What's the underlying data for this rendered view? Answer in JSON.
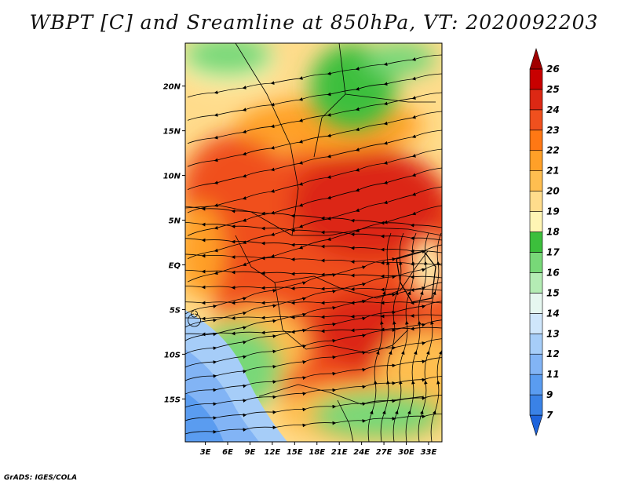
{
  "title": "WBPT [C] and Sreamline at 850hPa, VT: 2020092203",
  "credit": "GrADS: IGES/COLA",
  "map": {
    "lat_labels": [
      "20N",
      "15N",
      "10N",
      "5N",
      "EQ",
      "5S",
      "10S",
      "15S"
    ],
    "lat_values": [
      20,
      15,
      10,
      5,
      0,
      -5,
      -10,
      -15
    ],
    "lon_labels": [
      "3E",
      "6E",
      "9E",
      "12E",
      "15E",
      "18E",
      "21E",
      "24E",
      "27E",
      "30E",
      "33E"
    ],
    "lon_values": [
      3,
      6,
      9,
      12,
      15,
      18,
      21,
      24,
      27,
      30,
      33
    ],
    "lon_range": [
      0.3,
      34.8
    ],
    "lat_range": [
      -19.8,
      24.8
    ],
    "variable": "wet bulb potential temperature",
    "units": "C",
    "level": "850hPa"
  },
  "colorbar": {
    "labels": [
      "7",
      "9",
      "11",
      "12",
      "13",
      "14",
      "15",
      "16",
      "17",
      "18",
      "19",
      "20",
      "21",
      "22",
      "23",
      "24",
      "25",
      "26"
    ],
    "colors": [
      "#1e64dc",
      "#3a82e6",
      "#5a9cf0",
      "#82b4f5",
      "#a6cdf8",
      "#cfe6fb",
      "#e6f7f0",
      "#b4ecb4",
      "#78d878",
      "#3cbf3c",
      "#fff5b4",
      "#ffdc8c",
      "#ffbe50",
      "#ffa028",
      "#ff7814",
      "#f0501e",
      "#dc2814",
      "#c80000",
      "#a00000"
    ]
  }
}
